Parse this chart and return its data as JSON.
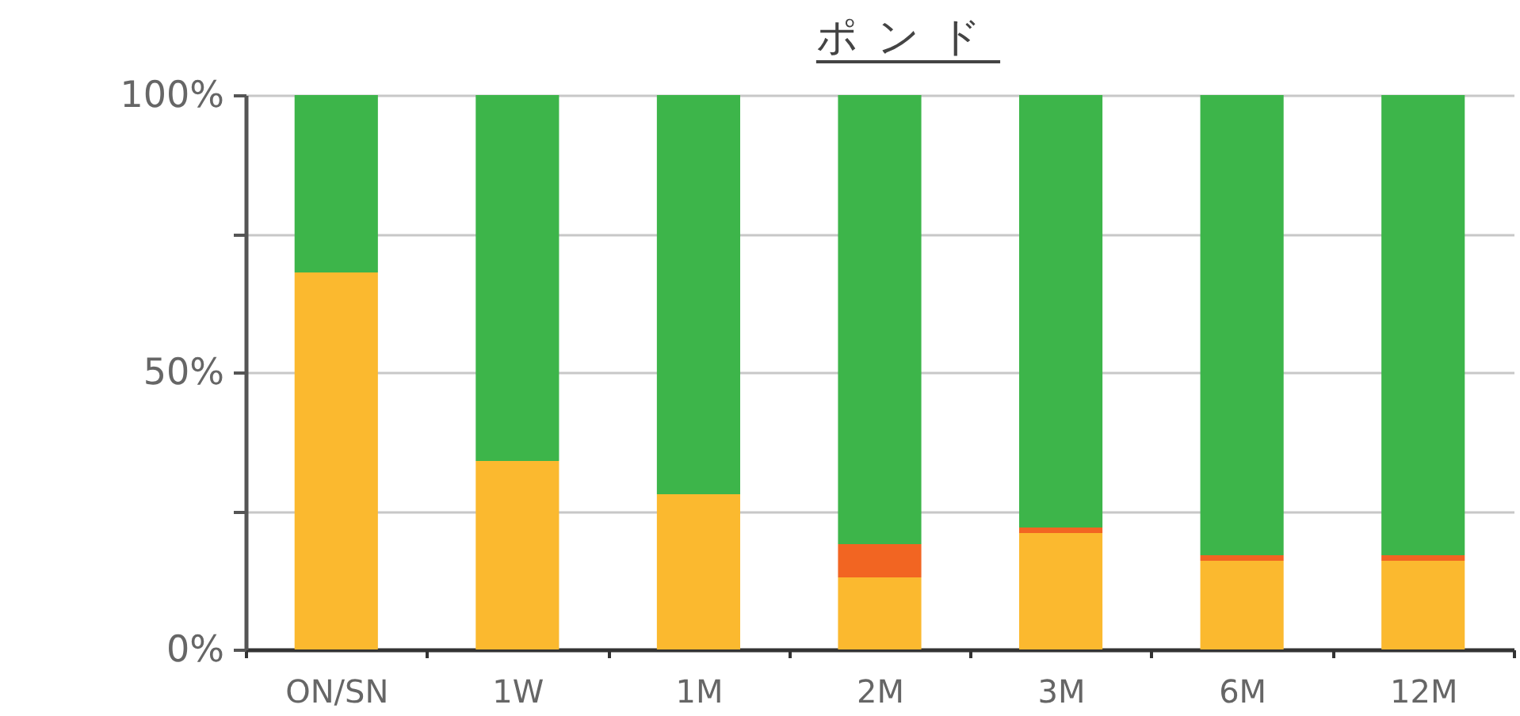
{
  "chart_data": {
    "type": "bar",
    "title": "ポンド",
    "categories": [
      "ON/SN",
      "1W",
      "1M",
      "2M",
      "3M",
      "6M",
      "12M"
    ],
    "stacked": true,
    "series": [
      {
        "color": "#fbb92f",
        "values": [
          68,
          34,
          28,
          13,
          21,
          16,
          16
        ]
      },
      {
        "color": "#f26522",
        "values": [
          0,
          0,
          0,
          6,
          1,
          1,
          1
        ]
      },
      {
        "color": "#3db54a",
        "values": [
          32,
          66,
          72,
          81,
          78,
          83,
          83
        ]
      }
    ],
    "ylim": [
      0,
      100
    ],
    "yticks": [
      {
        "value": 0,
        "label": "0%"
      },
      {
        "value": 25,
        "label": null
      },
      {
        "value": 50,
        "label": "50%"
      },
      {
        "value": 75,
        "label": null
      },
      {
        "value": 100,
        "label": "100%"
      }
    ],
    "grid": "y"
  }
}
